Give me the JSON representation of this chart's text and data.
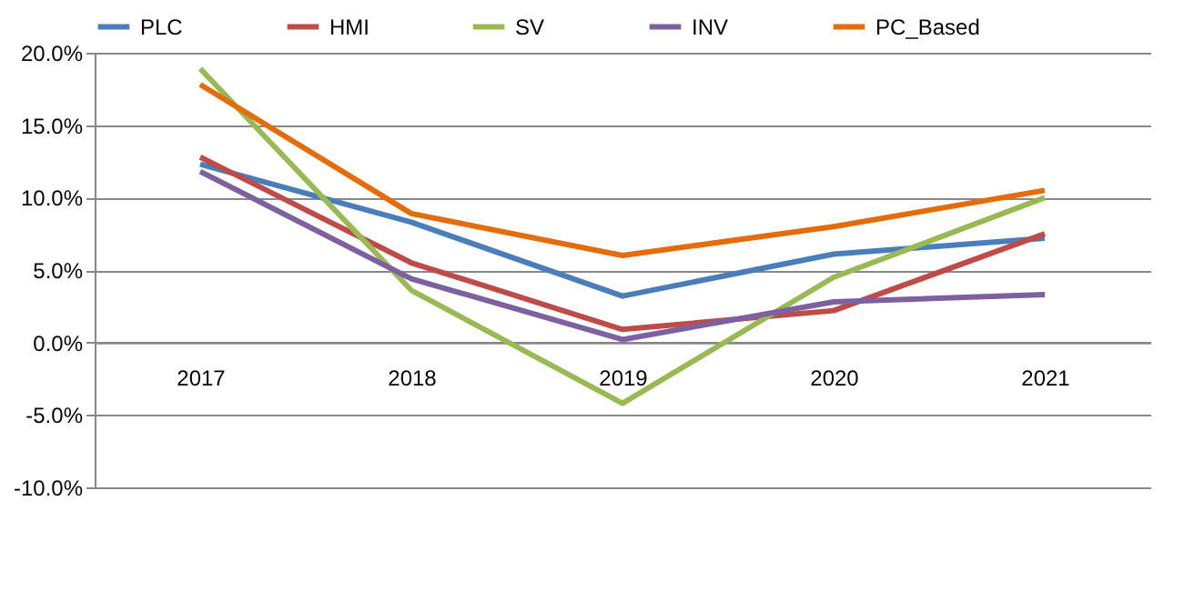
{
  "chart_data": {
    "type": "line",
    "categories": [
      "2017",
      "2018",
      "2019",
      "2020",
      "2021"
    ],
    "series": [
      {
        "name": "PLC",
        "color": "#4a7ebb",
        "values": [
          12.3,
          8.3,
          3.2,
          6.1,
          7.2
        ]
      },
      {
        "name": "HMI",
        "color": "#be4b48",
        "values": [
          12.8,
          5.5,
          0.9,
          2.2,
          7.5
        ]
      },
      {
        "name": "SV",
        "color": "#98b954",
        "values": [
          18.9,
          3.6,
          -4.2,
          4.5,
          10.0
        ]
      },
      {
        "name": "INV",
        "color": "#7d60a0",
        "values": [
          11.8,
          4.4,
          0.2,
          2.8,
          3.3
        ]
      },
      {
        "name": "PC_Based",
        "color": "#e46c0a",
        "values": [
          17.8,
          8.9,
          6.0,
          8.0,
          10.5
        ]
      }
    ],
    "ylim": [
      -10,
      20
    ],
    "yticks": [
      {
        "value": -10,
        "label": "-10.0%"
      },
      {
        "value": -5,
        "label": "-5.0%"
      },
      {
        "value": 0,
        "label": "0.0%"
      },
      {
        "value": 5,
        "label": "5.0%"
      },
      {
        "value": 10,
        "label": "10.0%"
      },
      {
        "value": 15,
        "label": "15.0%"
      },
      {
        "value": 20,
        "label": "20.0%"
      }
    ],
    "grid": "y",
    "legend": "top",
    "marker": "none",
    "line_style": "solid"
  }
}
